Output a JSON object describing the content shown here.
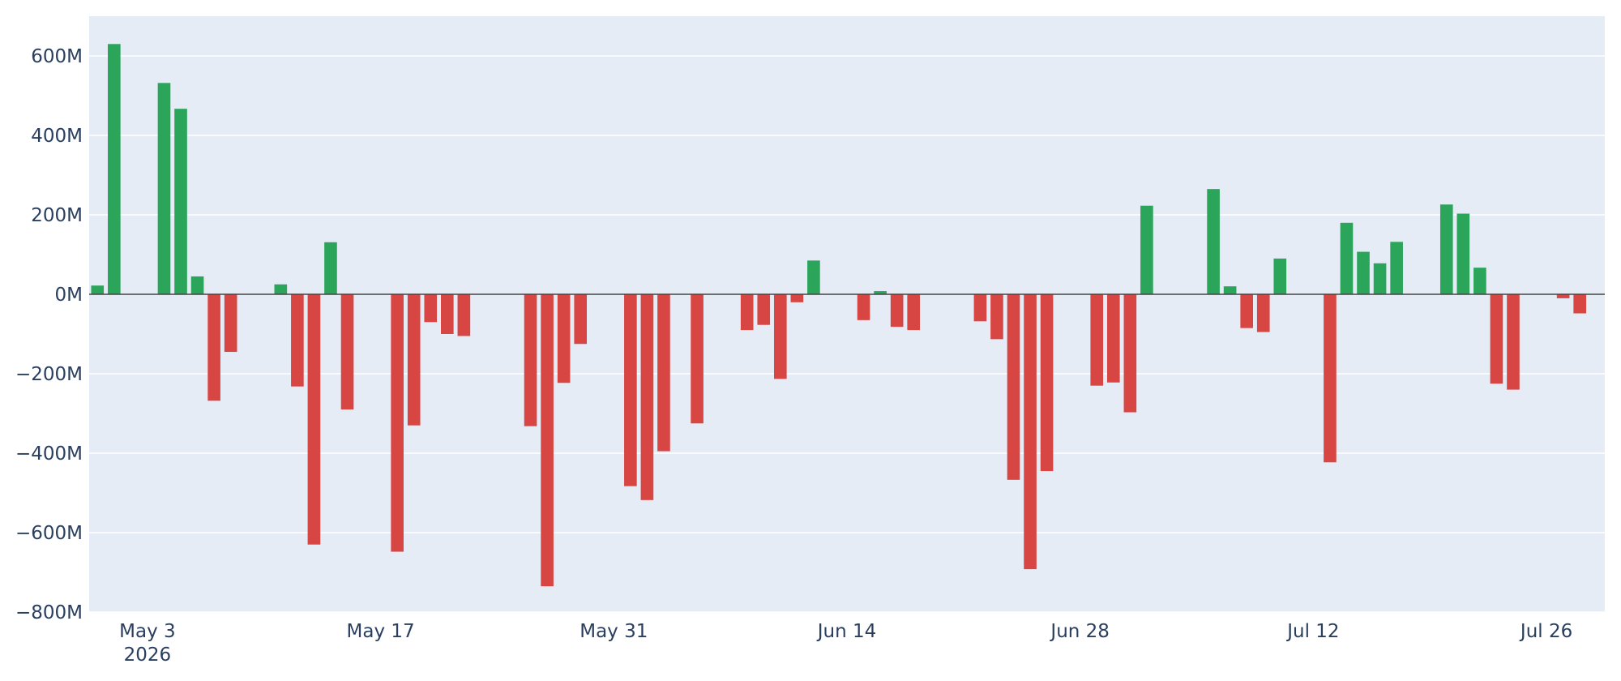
{
  "chart_data": {
    "type": "bar",
    "title": "",
    "xlabel": "",
    "ylabel": "",
    "ylim": [
      -800000000,
      700000000
    ],
    "xlim": [
      "2026-04-29T12:00:00",
      "2026-07-29T12:00:00"
    ],
    "grid": true,
    "legend": "none",
    "colors": {
      "positive": "#2aa55a",
      "negative": "#d84643",
      "plot_background": "#e5ecf6",
      "grid": "#ffffff",
      "zero_line": "#444444",
      "text": "#2a3f5f"
    },
    "y_ticks": [
      {
        "value": 600000000,
        "label": "600M"
      },
      {
        "value": 400000000,
        "label": "400M"
      },
      {
        "value": 200000000,
        "label": "200M"
      },
      {
        "value": 0,
        "label": "0M"
      },
      {
        "value": -200000000,
        "label": "−200M"
      },
      {
        "value": -400000000,
        "label": "−400M"
      },
      {
        "value": -600000000,
        "label": "−600M"
      },
      {
        "value": -800000000,
        "label": "−800M"
      }
    ],
    "x_ticks": [
      {
        "date": "2026-05-03",
        "label": "May 3",
        "sublabel": "2026"
      },
      {
        "date": "2026-05-17",
        "label": "May 17",
        "sublabel": ""
      },
      {
        "date": "2026-05-31",
        "label": "May 31",
        "sublabel": ""
      },
      {
        "date": "2026-06-14",
        "label": "Jun 14",
        "sublabel": ""
      },
      {
        "date": "2026-06-28",
        "label": "Jun 28",
        "sublabel": ""
      },
      {
        "date": "2026-07-12",
        "label": "Jul 12",
        "sublabel": ""
      },
      {
        "date": "2026-07-26",
        "label": "Jul 26",
        "sublabel": ""
      }
    ],
    "x": [
      "2026-04-30",
      "2026-05-01",
      "2026-05-04",
      "2026-05-05",
      "2026-05-06",
      "2026-05-07",
      "2026-05-08",
      "2026-05-11",
      "2026-05-12",
      "2026-05-13",
      "2026-05-14",
      "2026-05-15",
      "2026-05-18",
      "2026-05-19",
      "2026-05-20",
      "2026-05-21",
      "2026-05-22",
      "2026-05-26",
      "2026-05-27",
      "2026-05-28",
      "2026-05-29",
      "2026-06-01",
      "2026-06-02",
      "2026-06-03",
      "2026-06-05",
      "2026-06-08",
      "2026-06-09",
      "2026-06-10",
      "2026-06-11",
      "2026-06-12",
      "2026-06-15",
      "2026-06-16",
      "2026-06-17",
      "2026-06-18",
      "2026-06-22",
      "2026-06-23",
      "2026-06-24",
      "2026-06-25",
      "2026-06-26",
      "2026-06-29",
      "2026-06-30",
      "2026-07-01",
      "2026-07-02",
      "2026-07-06",
      "2026-07-07",
      "2026-07-08",
      "2026-07-09",
      "2026-07-10",
      "2026-07-13",
      "2026-07-14",
      "2026-07-15",
      "2026-07-16",
      "2026-07-17",
      "2026-07-20",
      "2026-07-21",
      "2026-07-22",
      "2026-07-23",
      "2026-07-24",
      "2026-07-27",
      "2026-07-28"
    ],
    "values": [
      22000000,
      630000000,
      532000000,
      467000000,
      45000000,
      -268000000,
      -145000000,
      25000000,
      -232000000,
      -630000000,
      131000000,
      -290000000,
      -648000000,
      -330000000,
      -70000000,
      -100000000,
      -105000000,
      -332000000,
      -735000000,
      -223000000,
      -125000000,
      -483000000,
      -518000000,
      -395000000,
      -325000000,
      -90000000,
      -77000000,
      -213000000,
      -20000000,
      85000000,
      -65000000,
      8000000,
      -82000000,
      -90000000,
      -68000000,
      -113000000,
      -467000000,
      -692000000,
      -445000000,
      -230000000,
      -222000000,
      -297000000,
      223000000,
      265000000,
      20000000,
      -85000000,
      -95000000,
      90000000,
      -423000000,
      180000000,
      107000000,
      78000000,
      132000000,
      226000000,
      203000000,
      67000000,
      -225000000,
      -240000000,
      -10000000,
      -48000000
    ]
  }
}
